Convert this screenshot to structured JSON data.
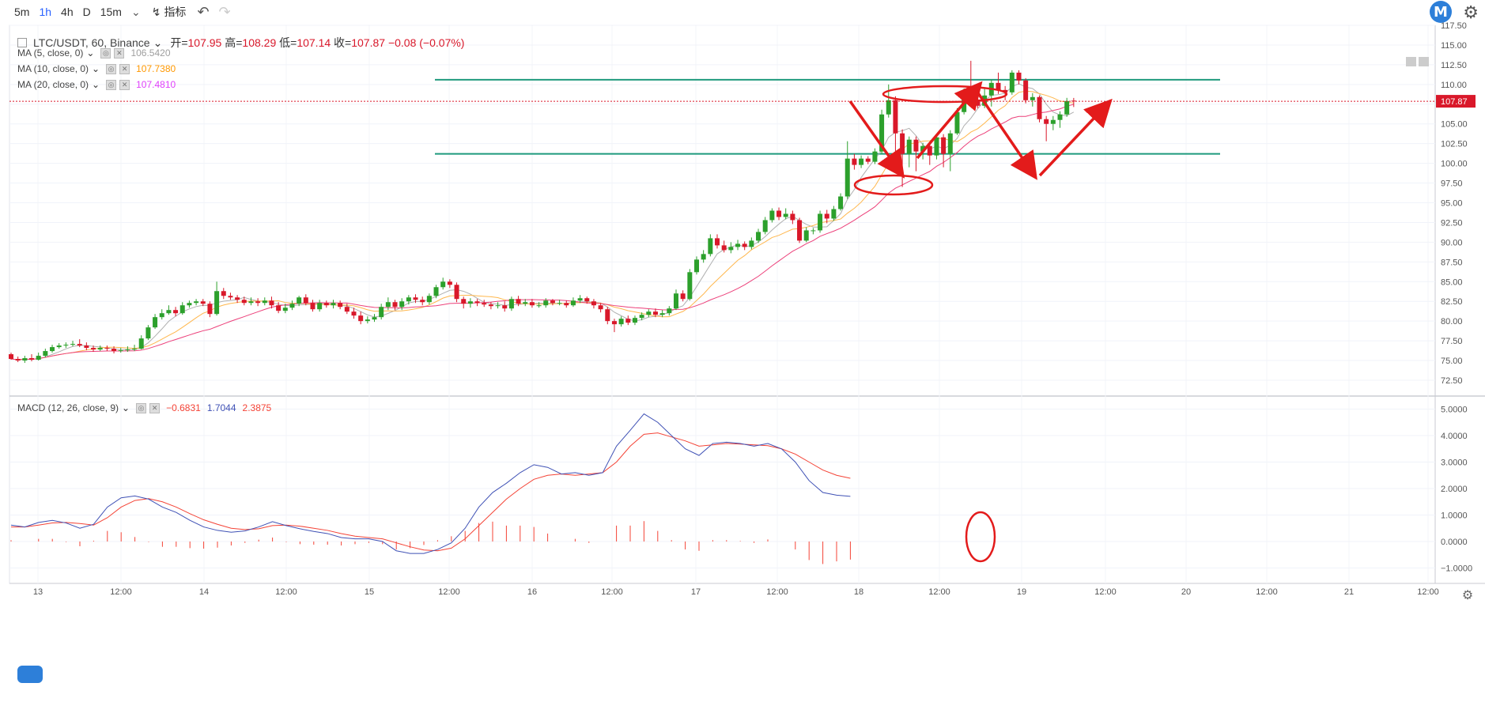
{
  "toolbar": {
    "timeframes": [
      "5m",
      "1h",
      "4h",
      "D",
      "15m"
    ],
    "active": "1h",
    "indicators_label": "指标"
  },
  "brand_letter": "M",
  "symbol": {
    "title": "LTC/USDT, 60, Binance",
    "open_label": "开",
    "open": "107.95",
    "high_label": "高",
    "high": "108.29",
    "low_label": "低",
    "low": "107.14",
    "close_label": "收",
    "close": "107.87",
    "change": "−0.08 (−0.07%)"
  },
  "ma": [
    {
      "label": "MA (5, close, 0)",
      "value": "106.5420",
      "color": "#9e9e9e"
    },
    {
      "label": "MA (10, close, 0)",
      "value": "107.7380",
      "color": "#ff9800"
    },
    {
      "label": "MA (20, close, 0)",
      "value": "107.4810",
      "color": "#e040fb"
    }
  ],
  "macd": {
    "label": "MACD (12, 26, close, 9)",
    "hist": "−0.6831",
    "macd": "1.7044",
    "signal": "2.3875",
    "hist_color": "#f44336",
    "macd_color": "#3f51b5",
    "signal_color": "#f44336"
  },
  "price_axis": [
    "117.50",
    "115.00",
    "112.50",
    "110.00",
    "107.50",
    "105.00",
    "102.50",
    "100.00",
    "97.50",
    "95.00",
    "92.50",
    "90.00",
    "87.50",
    "85.00",
    "82.50",
    "80.00",
    "77.50",
    "75.00",
    "72.50"
  ],
  "current_price": "107.87",
  "macd_axis": [
    "5.0000",
    "4.0000",
    "3.0000",
    "2.0000",
    "1.0000",
    "0.0000",
    "−1.0000"
  ],
  "time_axis": [
    "13",
    "12:00",
    "14",
    "12:00",
    "15",
    "12:00",
    "16",
    "12:00",
    "17",
    "12:00",
    "18",
    "12:00",
    "19",
    "12:00",
    "20",
    "12:00",
    "21",
    "12:00"
  ],
  "colors": {
    "up": "#2ca02c",
    "down": "#d9182a",
    "trend": "#1f9a7d",
    "annot": "#e31b1b"
  },
  "chart_data": {
    "type": "candlestick",
    "candles": [
      [
        75.8,
        75.2,
        76.0,
        75.1
      ],
      [
        75.2,
        75.0,
        75.5,
        74.8
      ],
      [
        75.0,
        75.3,
        75.6,
        74.7
      ],
      [
        75.3,
        75.1,
        75.8,
        74.9
      ],
      [
        75.1,
        75.6,
        76.0,
        75.0
      ],
      [
        75.6,
        76.2,
        76.5,
        75.4
      ],
      [
        76.2,
        76.7,
        77.0,
        76.0
      ],
      [
        76.7,
        76.9,
        77.2,
        76.5
      ],
      [
        76.9,
        77.0,
        77.3,
        76.6
      ],
      [
        77.0,
        77.1,
        77.5,
        76.8
      ],
      [
        77.1,
        76.9,
        77.7,
        76.7
      ],
      [
        76.9,
        76.6,
        77.3,
        76.3
      ],
      [
        76.6,
        76.4,
        76.9,
        76.1
      ],
      [
        76.4,
        76.6,
        76.9,
        76.2
      ],
      [
        76.6,
        76.5,
        76.9,
        76.2
      ],
      [
        76.5,
        76.2,
        76.8,
        75.9
      ],
      [
        76.2,
        76.3,
        76.6,
        76.0
      ],
      [
        76.3,
        76.4,
        76.8,
        76.1
      ],
      [
        76.4,
        76.5,
        77.0,
        76.2
      ],
      [
        76.5,
        77.8,
        78.2,
        76.4
      ],
      [
        77.8,
        79.2,
        79.5,
        77.6
      ],
      [
        79.2,
        80.5,
        80.9,
        79.0
      ],
      [
        80.5,
        81.0,
        81.5,
        80.2
      ],
      [
        81.0,
        81.4,
        82.0,
        80.8
      ],
      [
        81.4,
        81.0,
        81.8,
        80.6
      ],
      [
        81.0,
        82.0,
        82.4,
        80.8
      ],
      [
        82.0,
        82.3,
        82.6,
        81.7
      ],
      [
        82.3,
        82.5,
        82.8,
        82.0
      ],
      [
        82.5,
        82.2,
        82.8,
        81.9
      ],
      [
        82.2,
        80.9,
        82.5,
        80.5
      ],
      [
        80.9,
        83.8,
        85.0,
        80.7
      ],
      [
        83.8,
        83.2,
        84.2,
        82.8
      ],
      [
        83.2,
        83.0,
        83.6,
        82.7
      ],
      [
        83.0,
        82.7,
        83.3,
        82.3
      ],
      [
        82.7,
        82.3,
        83.1,
        82.0
      ],
      [
        82.3,
        82.5,
        83.0,
        82.0
      ],
      [
        82.5,
        82.3,
        82.9,
        81.9
      ],
      [
        82.3,
        82.6,
        83.0,
        82.0
      ],
      [
        82.6,
        82.0,
        83.1,
        81.6
      ],
      [
        82.0,
        81.3,
        82.4,
        81.0
      ],
      [
        81.3,
        81.7,
        82.2,
        81.0
      ],
      [
        81.7,
        82.2,
        82.6,
        81.4
      ],
      [
        82.2,
        83.0,
        83.2,
        81.9
      ],
      [
        83.0,
        82.3,
        83.4,
        82.0
      ],
      [
        82.3,
        81.5,
        82.7,
        81.2
      ],
      [
        81.5,
        82.3,
        82.7,
        81.2
      ],
      [
        82.3,
        82.0,
        82.6,
        81.7
      ],
      [
        82.0,
        82.3,
        82.7,
        81.6
      ],
      [
        82.3,
        81.8,
        82.6,
        81.5
      ],
      [
        81.8,
        81.2,
        82.2,
        80.9
      ],
      [
        81.2,
        80.7,
        81.7,
        80.3
      ],
      [
        80.7,
        80.0,
        81.2,
        79.6
      ],
      [
        80.0,
        80.2,
        80.6,
        79.7
      ],
      [
        80.2,
        80.5,
        80.9,
        79.9
      ],
      [
        80.5,
        81.8,
        82.2,
        80.2
      ],
      [
        81.8,
        82.4,
        83.0,
        81.4
      ],
      [
        82.4,
        81.8,
        82.7,
        81.4
      ],
      [
        81.8,
        82.5,
        82.9,
        81.4
      ],
      [
        82.5,
        83.0,
        83.3,
        82.1
      ],
      [
        83.0,
        82.7,
        83.4,
        82.3
      ],
      [
        82.7,
        82.4,
        83.1,
        82.0
      ],
      [
        82.4,
        83.2,
        83.5,
        82.1
      ],
      [
        83.2,
        84.3,
        84.6,
        82.9
      ],
      [
        84.3,
        85.0,
        85.5,
        84.0
      ],
      [
        85.0,
        84.6,
        85.3,
        84.2
      ],
      [
        84.6,
        82.8,
        84.9,
        82.4
      ],
      [
        82.8,
        82.2,
        83.1,
        81.6
      ],
      [
        82.2,
        82.5,
        82.9,
        81.7
      ],
      [
        82.5,
        82.3,
        82.8,
        81.9
      ],
      [
        82.3,
        82.1,
        82.7,
        81.8
      ],
      [
        82.1,
        81.9,
        82.4,
        81.5
      ],
      [
        81.9,
        82.0,
        82.4,
        81.6
      ],
      [
        82.0,
        81.6,
        82.5,
        81.2
      ],
      [
        81.6,
        82.8,
        83.1,
        81.3
      ],
      [
        82.8,
        82.2,
        83.2,
        81.9
      ],
      [
        82.2,
        82.4,
        82.8,
        81.9
      ],
      [
        82.4,
        82.0,
        82.8,
        81.7
      ],
      [
        82.0,
        82.0,
        82.4,
        81.7
      ],
      [
        82.0,
        82.6,
        82.9,
        81.7
      ],
      [
        82.6,
        82.3,
        82.8,
        82.0
      ],
      [
        82.3,
        82.3,
        82.7,
        82.0
      ],
      [
        82.3,
        82.0,
        82.6,
        81.7
      ],
      [
        82.0,
        82.6,
        83.0,
        81.8
      ],
      [
        82.6,
        82.9,
        83.3,
        82.3
      ],
      [
        82.9,
        82.5,
        83.1,
        82.2
      ],
      [
        82.5,
        82.0,
        82.8,
        81.6
      ],
      [
        82.0,
        81.5,
        82.3,
        81.1
      ],
      [
        81.5,
        80.0,
        81.8,
        79.6
      ],
      [
        80.0,
        79.6,
        80.3,
        78.6
      ],
      [
        79.6,
        80.3,
        80.6,
        79.3
      ],
      [
        80.3,
        79.8,
        80.7,
        79.5
      ],
      [
        79.8,
        80.4,
        80.7,
        79.5
      ],
      [
        80.4,
        80.8,
        81.1,
        80.1
      ],
      [
        80.8,
        81.2,
        81.5,
        80.5
      ],
      [
        81.2,
        80.8,
        81.6,
        80.5
      ],
      [
        80.8,
        81.0,
        81.4,
        80.5
      ],
      [
        81.0,
        81.6,
        81.9,
        80.7
      ],
      [
        81.6,
        83.5,
        84.0,
        81.4
      ],
      [
        83.5,
        82.8,
        83.9,
        82.5
      ],
      [
        82.8,
        86.2,
        86.6,
        82.6
      ],
      [
        86.2,
        87.8,
        88.2,
        85.9
      ],
      [
        87.8,
        88.5,
        89.0,
        87.4
      ],
      [
        88.5,
        90.5,
        91.0,
        88.2
      ],
      [
        90.5,
        89.6,
        91.0,
        89.2
      ],
      [
        89.6,
        89.0,
        90.2,
        88.7
      ],
      [
        89.0,
        89.4,
        90.0,
        88.6
      ],
      [
        89.4,
        89.8,
        90.3,
        89.0
      ],
      [
        89.8,
        89.4,
        90.1,
        89.0
      ],
      [
        89.4,
        90.2,
        90.6,
        89.1
      ],
      [
        90.2,
        91.3,
        91.7,
        89.9
      ],
      [
        91.3,
        92.8,
        93.2,
        91.0
      ],
      [
        92.8,
        94.0,
        94.3,
        92.5
      ],
      [
        94.0,
        93.2,
        94.4,
        92.8
      ],
      [
        93.2,
        93.6,
        94.3,
        92.9
      ],
      [
        93.6,
        92.8,
        94.0,
        92.3
      ],
      [
        92.8,
        90.2,
        93.1,
        89.9
      ],
      [
        90.2,
        91.5,
        91.9,
        90.0
      ],
      [
        91.5,
        91.5,
        91.8,
        91.0
      ],
      [
        91.5,
        93.6,
        94.0,
        91.2
      ],
      [
        93.6,
        93.0,
        94.1,
        92.4
      ],
      [
        93.0,
        94.2,
        94.6,
        92.7
      ],
      [
        94.2,
        95.8,
        96.2,
        94.0
      ],
      [
        95.8,
        100.6,
        102.8,
        95.5
      ],
      [
        100.6,
        99.8,
        101.2,
        99.2
      ],
      [
        99.8,
        100.6,
        101.0,
        99.4
      ],
      [
        100.6,
        100.2,
        100.9,
        99.9
      ],
      [
        100.2,
        101.5,
        101.9,
        99.9
      ],
      [
        101.5,
        106.2,
        106.8,
        101.2
      ],
      [
        106.2,
        108.0,
        110.0,
        105.8
      ],
      [
        108.0,
        103.8,
        108.5,
        101.5
      ],
      [
        103.8,
        101.2,
        104.3,
        97.0
      ],
      [
        101.2,
        103.0,
        103.4,
        99.5
      ],
      [
        103.0,
        101.5,
        103.4,
        99.0
      ],
      [
        101.5,
        102.2,
        102.6,
        100.5
      ],
      [
        102.2,
        101.0,
        102.6,
        99.8
      ],
      [
        101.0,
        103.3,
        103.6,
        100.5
      ],
      [
        103.3,
        101.2,
        103.7,
        99.5
      ],
      [
        101.2,
        103.8,
        104.2,
        99.0
      ],
      [
        103.8,
        106.5,
        107.0,
        103.6
      ],
      [
        106.5,
        109.0,
        109.5,
        106.2
      ],
      [
        109.0,
        108.1,
        113.0,
        107.8
      ],
      [
        108.1,
        107.3,
        109.3,
        107.0
      ],
      [
        107.3,
        108.6,
        109.5,
        107.0
      ],
      [
        108.6,
        110.2,
        110.6,
        107.2
      ],
      [
        110.2,
        109.3,
        111.5,
        108.8
      ],
      [
        109.3,
        109.0,
        109.8,
        108.0
      ],
      [
        109.0,
        111.5,
        111.8,
        108.7
      ],
      [
        111.5,
        110.5,
        111.8,
        110.0
      ],
      [
        110.5,
        108.0,
        110.8,
        107.6
      ],
      [
        108.0,
        108.4,
        108.9,
        107.2
      ],
      [
        108.4,
        105.6,
        108.6,
        105.2
      ],
      [
        105.6,
        105.0,
        106.0,
        102.8
      ],
      [
        105.0,
        105.5,
        106.0,
        104.2
      ],
      [
        105.5,
        106.2,
        106.6,
        104.5
      ],
      [
        106.2,
        107.9,
        108.3,
        105.9
      ],
      [
        107.95,
        107.87,
        108.29,
        107.14
      ]
    ],
    "ma5_last": 106.542,
    "ma10_last": 107.738,
    "ma20_last": 107.481,
    "macd_line": [
      0.62,
      0.55,
      0.72,
      0.8,
      0.7,
      0.5,
      0.65,
      1.3,
      1.65,
      1.72,
      1.6,
      1.3,
      1.1,
      0.8,
      0.55,
      0.42,
      0.35,
      0.4,
      0.55,
      0.75,
      0.6,
      0.48,
      0.38,
      0.3,
      0.15,
      0.1,
      0.1,
      0.0,
      -0.35,
      -0.45,
      -0.45,
      -0.3,
      -0.05,
      0.5,
      1.3,
      1.85,
      2.2,
      2.6,
      2.9,
      2.8,
      2.55,
      2.6,
      2.5,
      2.6,
      3.6,
      4.2,
      4.82,
      4.5,
      4.0,
      3.5,
      3.25,
      3.7,
      3.75,
      3.7,
      3.6,
      3.7,
      3.5,
      3.0,
      2.3,
      1.85,
      1.75,
      1.7044
    ],
    "signal_line": [
      0.55,
      0.55,
      0.62,
      0.7,
      0.72,
      0.68,
      0.62,
      0.9,
      1.3,
      1.55,
      1.62,
      1.5,
      1.3,
      1.05,
      0.82,
      0.65,
      0.5,
      0.45,
      0.48,
      0.6,
      0.62,
      0.58,
      0.5,
      0.42,
      0.3,
      0.2,
      0.15,
      0.1,
      -0.05,
      -0.2,
      -0.32,
      -0.35,
      -0.25,
      0.1,
      0.6,
      1.1,
      1.6,
      2.0,
      2.35,
      2.5,
      2.55,
      2.5,
      2.55,
      2.6,
      3.0,
      3.6,
      4.05,
      4.1,
      3.95,
      3.8,
      3.6,
      3.65,
      3.7,
      3.68,
      3.65,
      3.62,
      3.5,
      3.3,
      3.0,
      2.7,
      2.5,
      2.3875
    ],
    "histogram": [
      0.05,
      0.0,
      0.1,
      0.1,
      -0.02,
      -0.18,
      0.03,
      0.4,
      0.35,
      0.17,
      -0.02,
      -0.2,
      -0.2,
      -0.25,
      -0.27,
      -0.23,
      -0.15,
      -0.05,
      0.07,
      0.15,
      -0.02,
      -0.1,
      -0.12,
      -0.12,
      -0.15,
      -0.1,
      -0.05,
      -0.1,
      -0.3,
      -0.25,
      -0.13,
      0.05,
      0.2,
      0.4,
      0.7,
      0.75,
      0.6,
      0.6,
      0.55,
      0.3,
      0.0,
      0.1,
      -0.05,
      0.0,
      0.6,
      0.6,
      0.77,
      0.4,
      0.05,
      -0.3,
      -0.35,
      0.05,
      0.05,
      0.02,
      -0.05,
      0.08,
      0.0,
      -0.3,
      -0.7,
      -0.85,
      -0.75,
      -0.6831
    ],
    "price_range": [
      72.5,
      117.5
    ],
    "macd_range": [
      -1.0,
      5.0
    ]
  },
  "overlay": {
    "resistance_level": 110.6,
    "support_level": 101.2
  }
}
